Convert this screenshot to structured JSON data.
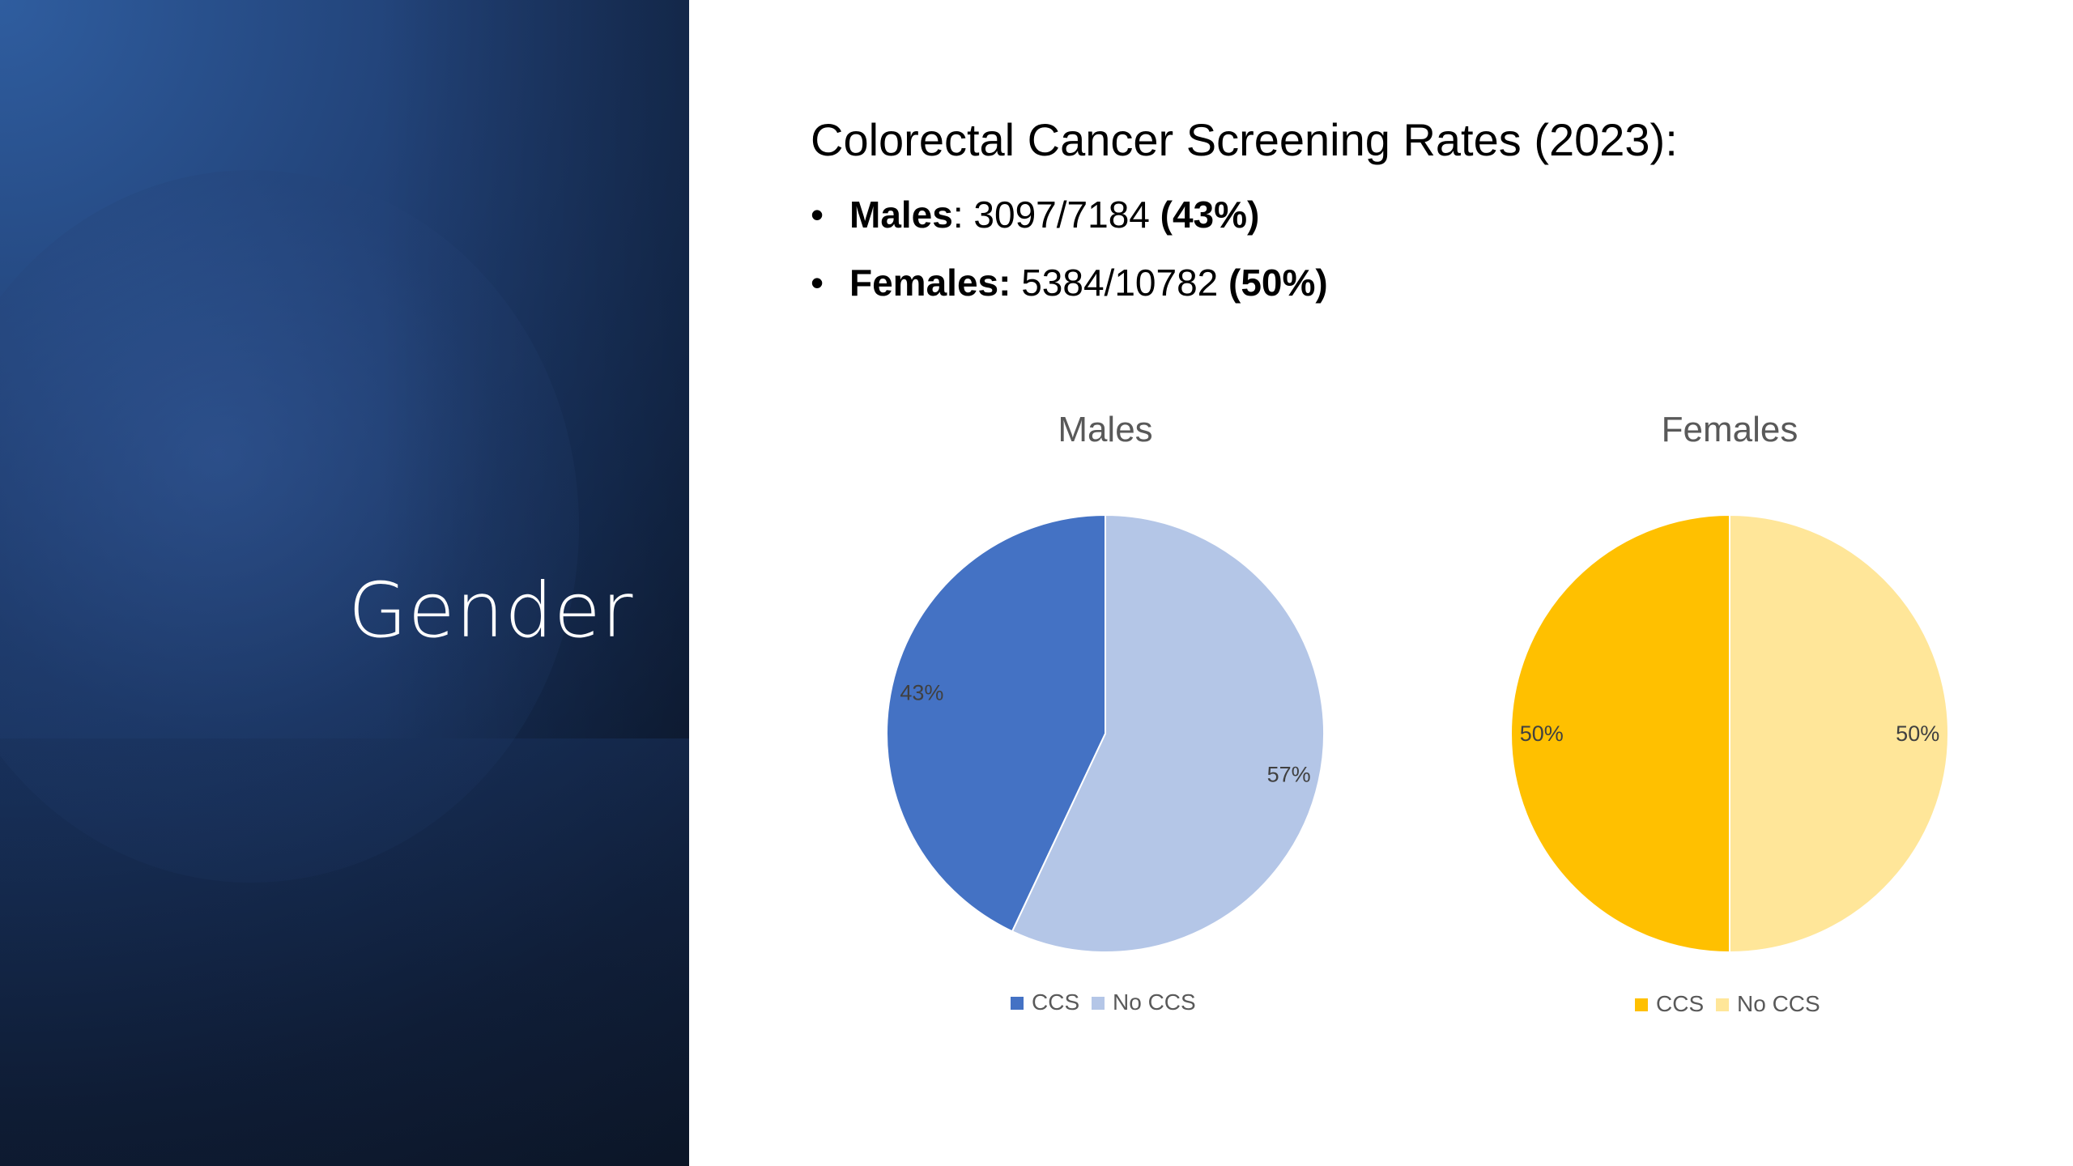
{
  "slide": {
    "section_title": "Gender",
    "heading": "Colorectal Cancer Screening Rates (2023):",
    "bullets": [
      {
        "label": "Males",
        "sep": ": ",
        "count": "3097/7184",
        "pct": "(43%)"
      },
      {
        "label": "Females:",
        "sep": " ",
        "count": "5384/10782",
        "pct": "(50%)"
      }
    ]
  },
  "chart_data": [
    {
      "type": "pie",
      "title": "Males",
      "categories": [
        "CCS",
        "No CCS"
      ],
      "values": [
        43,
        57
      ],
      "data_labels": [
        "43%",
        "57%"
      ],
      "colors": [
        "#4472c4",
        "#b4c6e7"
      ],
      "legend": "bottom"
    },
    {
      "type": "pie",
      "title": "Females",
      "categories": [
        "CCS",
        "No CCS"
      ],
      "values": [
        50,
        50
      ],
      "data_labels": [
        "50%",
        "50%"
      ],
      "colors": [
        "#ffc000",
        "#ffe699"
      ],
      "legend": "bottom"
    }
  ]
}
